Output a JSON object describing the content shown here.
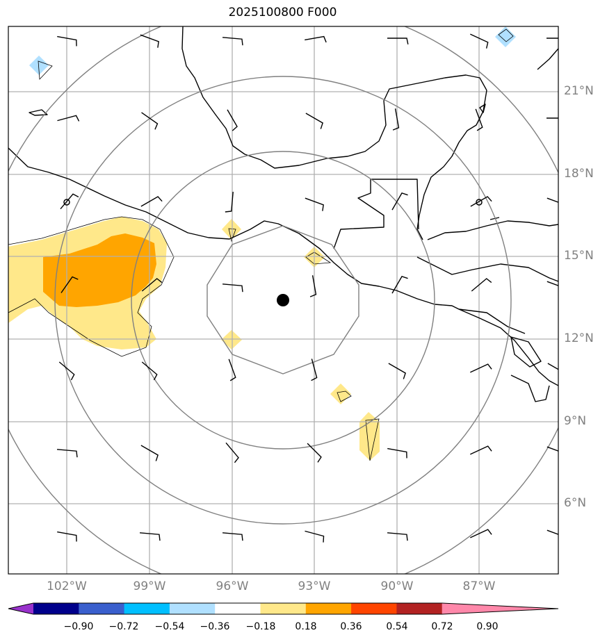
{
  "title": "2025100800 F000",
  "longitude_labels": [
    "102°W",
    "99°W",
    "96°W",
    "93°W",
    "90°W",
    "87°W"
  ],
  "latitude_labels": [
    "21°N",
    "18°N",
    "15°N",
    "12°N",
    "9°N",
    "6°N"
  ],
  "center_marker": {
    "lat": 13.4,
    "lon": -94.1
  },
  "range_rings_count": 4,
  "colorbar": {
    "tick_labels": [
      "−0.90",
      "−0.72",
      "−0.54",
      "−0.36",
      "−0.18",
      "0.18",
      "0.36",
      "0.54",
      "0.72",
      "0.90"
    ],
    "colors": [
      "#9932cc",
      "#00008b",
      "#3a5fcd",
      "#00bfff",
      "#b0e0ff",
      "#ffffff",
      "#ffe88a",
      "#ffa500",
      "#ff4500",
      "#b22222",
      "#ff88aa"
    ]
  },
  "shaded_fields": [
    {
      "level": "0.18–0.36",
      "color": "#ffe88a",
      "region": "west of 99°W near 13–16°N"
    },
    {
      "level": "0.36–0.54",
      "color": "#ffa500",
      "region": "near 101°W, 14–15.5°N"
    },
    {
      "level": "−0.36–−0.18",
      "color": "#b0e0ff",
      "region": "isolated spots near 103°W 21°N and 86°W 23°N"
    }
  ]
}
